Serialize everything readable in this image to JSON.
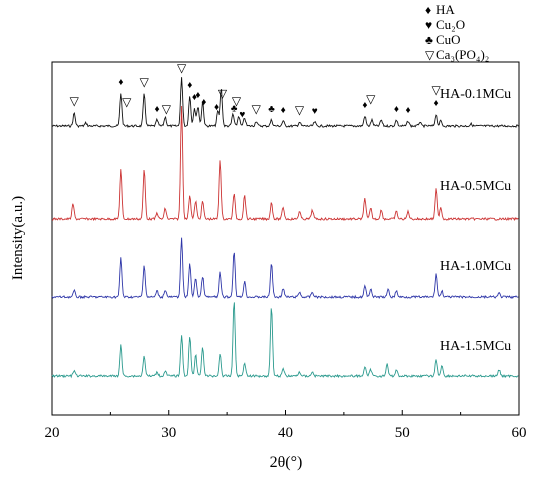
{
  "chart_data": {
    "type": "line",
    "title": "",
    "xlabel": "2θ(°)",
    "ylabel": "Intensity(a.u.)",
    "xlim": [
      20,
      60
    ],
    "x_ticks": [
      "20",
      "30",
      "40",
      "50",
      "60"
    ],
    "y_ticks_shown": false,
    "legend": {
      "placement": "top-right",
      "entries": [
        {
          "symbol": "♦",
          "label": "HA"
        },
        {
          "symbol": "♥",
          "label": "Cu₂O"
        },
        {
          "symbol": "♣",
          "label": "CuO"
        },
        {
          "symbol": "▽",
          "label": "Ca₃(PO₄)₂"
        }
      ]
    },
    "series": [
      {
        "name": "HA-0.1MCu",
        "color": "#111111",
        "peaks": [
          {
            "x": 21.9,
            "h": 0.13
          },
          {
            "x": 22.9,
            "h": 0.03
          },
          {
            "x": 25.9,
            "h": 0.33
          },
          {
            "x": 27.9,
            "h": 0.32
          },
          {
            "x": 29.0,
            "h": 0.06
          },
          {
            "x": 29.7,
            "h": 0.09
          },
          {
            "x": 31.1,
            "h": 0.48
          },
          {
            "x": 31.8,
            "h": 0.3
          },
          {
            "x": 32.2,
            "h": 0.18
          },
          {
            "x": 32.5,
            "h": 0.2
          },
          {
            "x": 32.9,
            "h": 0.24
          },
          {
            "x": 34.2,
            "h": 0.15
          },
          {
            "x": 34.5,
            "h": 0.38
          },
          {
            "x": 35.5,
            "h": 0.12
          },
          {
            "x": 36.0,
            "h": 0.1
          },
          {
            "x": 36.5,
            "h": 0.08
          },
          {
            "x": 37.5,
            "h": 0.05
          },
          {
            "x": 38.8,
            "h": 0.06
          },
          {
            "x": 39.8,
            "h": 0.05
          },
          {
            "x": 41.2,
            "h": 0.04
          },
          {
            "x": 42.5,
            "h": 0.04
          },
          {
            "x": 46.8,
            "h": 0.1
          },
          {
            "x": 47.4,
            "h": 0.06
          },
          {
            "x": 48.2,
            "h": 0.06
          },
          {
            "x": 49.5,
            "h": 0.06
          },
          {
            "x": 50.5,
            "h": 0.05
          },
          {
            "x": 51.5,
            "h": 0.04
          },
          {
            "x": 52.9,
            "h": 0.12
          },
          {
            "x": 53.3,
            "h": 0.05
          },
          {
            "x": 55.9,
            "h": 0.02
          }
        ],
        "markers": [
          {
            "x": 21.9,
            "symbol": "▽"
          },
          {
            "x": 25.9,
            "symbol": "♦"
          },
          {
            "x": 26.4,
            "symbol": "▽"
          },
          {
            "x": 27.9,
            "symbol": "▽"
          },
          {
            "x": 29.0,
            "symbol": "♦"
          },
          {
            "x": 29.8,
            "symbol": "▽"
          },
          {
            "x": 31.1,
            "symbol": "▽"
          },
          {
            "x": 31.8,
            "symbol": "♦"
          },
          {
            "x": 32.2,
            "symbol": "♦"
          },
          {
            "x": 32.5,
            "symbol": "♦"
          },
          {
            "x": 33.0,
            "symbol": "♦"
          },
          {
            "x": 34.1,
            "symbol": "♦"
          },
          {
            "x": 34.6,
            "symbol": "▽"
          },
          {
            "x": 35.6,
            "symbol": "♣"
          },
          {
            "x": 35.8,
            "symbol": "▽"
          },
          {
            "x": 36.3,
            "symbol": "♥"
          },
          {
            "x": 37.5,
            "symbol": "▽"
          },
          {
            "x": 38.8,
            "symbol": "♣"
          },
          {
            "x": 39.8,
            "symbol": "♦"
          },
          {
            "x": 41.2,
            "symbol": "▽"
          },
          {
            "x": 42.5,
            "symbol": "♥"
          },
          {
            "x": 46.8,
            "symbol": "♦"
          },
          {
            "x": 47.3,
            "symbol": "▽"
          },
          {
            "x": 49.5,
            "symbol": "♦"
          },
          {
            "x": 50.5,
            "symbol": "♦"
          },
          {
            "x": 52.9,
            "symbol": "♦"
          },
          {
            "x": 52.9,
            "symbol": "▽"
          }
        ]
      },
      {
        "name": "HA-0.5MCu",
        "color": "#cc3333",
        "peaks": [
          {
            "x": 21.8,
            "h": 0.1
          },
          {
            "x": 25.9,
            "h": 0.33
          },
          {
            "x": 27.9,
            "h": 0.33
          },
          {
            "x": 29.0,
            "h": 0.04
          },
          {
            "x": 29.7,
            "h": 0.07
          },
          {
            "x": 31.1,
            "h": 0.75
          },
          {
            "x": 31.8,
            "h": 0.16
          },
          {
            "x": 32.3,
            "h": 0.12
          },
          {
            "x": 32.9,
            "h": 0.12
          },
          {
            "x": 34.4,
            "h": 0.4
          },
          {
            "x": 35.6,
            "h": 0.17
          },
          {
            "x": 36.5,
            "h": 0.16
          },
          {
            "x": 38.8,
            "h": 0.11
          },
          {
            "x": 39.8,
            "h": 0.08
          },
          {
            "x": 41.2,
            "h": 0.05
          },
          {
            "x": 42.3,
            "h": 0.06
          },
          {
            "x": 46.8,
            "h": 0.14
          },
          {
            "x": 47.3,
            "h": 0.07
          },
          {
            "x": 48.2,
            "h": 0.06
          },
          {
            "x": 49.5,
            "h": 0.05
          },
          {
            "x": 50.5,
            "h": 0.05
          },
          {
            "x": 52.9,
            "h": 0.2
          },
          {
            "x": 53.3,
            "h": 0.08
          }
        ]
      },
      {
        "name": "HA-1.0MCu",
        "color": "#2e36a8",
        "peaks": [
          {
            "x": 21.9,
            "h": 0.05
          },
          {
            "x": 25.9,
            "h": 0.32
          },
          {
            "x": 27.9,
            "h": 0.26
          },
          {
            "x": 29.0,
            "h": 0.05
          },
          {
            "x": 29.7,
            "h": 0.06
          },
          {
            "x": 31.1,
            "h": 0.48
          },
          {
            "x": 31.8,
            "h": 0.28
          },
          {
            "x": 32.3,
            "h": 0.16
          },
          {
            "x": 32.9,
            "h": 0.17
          },
          {
            "x": 34.4,
            "h": 0.2
          },
          {
            "x": 35.6,
            "h": 0.38
          },
          {
            "x": 36.5,
            "h": 0.13
          },
          {
            "x": 38.8,
            "h": 0.28
          },
          {
            "x": 39.8,
            "h": 0.07
          },
          {
            "x": 41.2,
            "h": 0.04
          },
          {
            "x": 42.3,
            "h": 0.04
          },
          {
            "x": 46.8,
            "h": 0.09
          },
          {
            "x": 47.3,
            "h": 0.07
          },
          {
            "x": 48.8,
            "h": 0.06
          },
          {
            "x": 49.5,
            "h": 0.05
          },
          {
            "x": 52.9,
            "h": 0.19
          },
          {
            "x": 53.4,
            "h": 0.05
          },
          {
            "x": 58.3,
            "h": 0.03
          }
        ]
      },
      {
        "name": "HA-1.5MCu",
        "color": "#2b9a8e",
        "peaks": [
          {
            "x": 21.9,
            "h": 0.05
          },
          {
            "x": 25.9,
            "h": 0.29
          },
          {
            "x": 27.9,
            "h": 0.19
          },
          {
            "x": 29.0,
            "h": 0.04
          },
          {
            "x": 29.7,
            "h": 0.05
          },
          {
            "x": 31.1,
            "h": 0.39
          },
          {
            "x": 31.8,
            "h": 0.38
          },
          {
            "x": 32.3,
            "h": 0.2
          },
          {
            "x": 32.9,
            "h": 0.28
          },
          {
            "x": 34.4,
            "h": 0.21
          },
          {
            "x": 35.6,
            "h": 0.72
          },
          {
            "x": 36.5,
            "h": 0.13
          },
          {
            "x": 38.8,
            "h": 0.66
          },
          {
            "x": 39.8,
            "h": 0.07
          },
          {
            "x": 41.2,
            "h": 0.04
          },
          {
            "x": 42.3,
            "h": 0.04
          },
          {
            "x": 46.8,
            "h": 0.09
          },
          {
            "x": 47.3,
            "h": 0.06
          },
          {
            "x": 48.7,
            "h": 0.11
          },
          {
            "x": 49.5,
            "h": 0.06
          },
          {
            "x": 52.9,
            "h": 0.16
          },
          {
            "x": 53.4,
            "h": 0.1
          },
          {
            "x": 58.3,
            "h": 0.06
          }
        ]
      }
    ]
  }
}
